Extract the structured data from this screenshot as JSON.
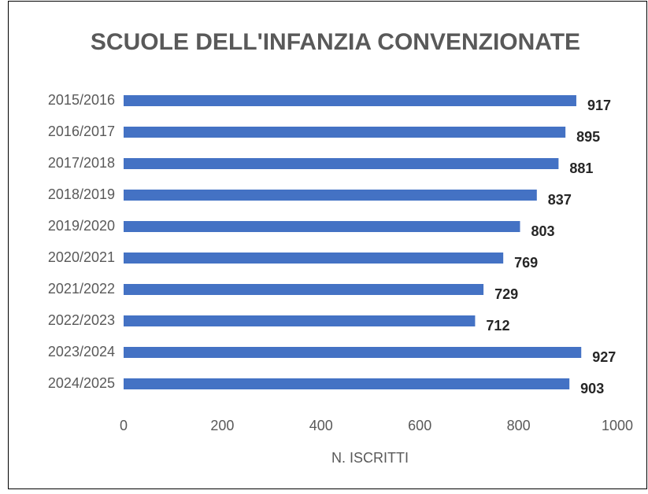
{
  "chart_data": {
    "type": "bar",
    "orientation": "horizontal",
    "title": "SCUOLE DELL'INFANZIA CONVENZIONATE",
    "xlabel": "N. ISCRITTI",
    "categories": [
      "2015/2016",
      "2016/2017",
      "2017/2018",
      "2018/2019",
      "2019/2020",
      "2020/2021",
      "2021/2022",
      "2022/2023",
      "2023/2024",
      "2024/2025"
    ],
    "values": [
      917,
      895,
      881,
      837,
      803,
      769,
      729,
      712,
      927,
      903
    ],
    "color": "#4472c4",
    "xlim": [
      0,
      1000
    ],
    "xticks": [
      0,
      200,
      400,
      600,
      800,
      1000
    ],
    "grid": false
  }
}
